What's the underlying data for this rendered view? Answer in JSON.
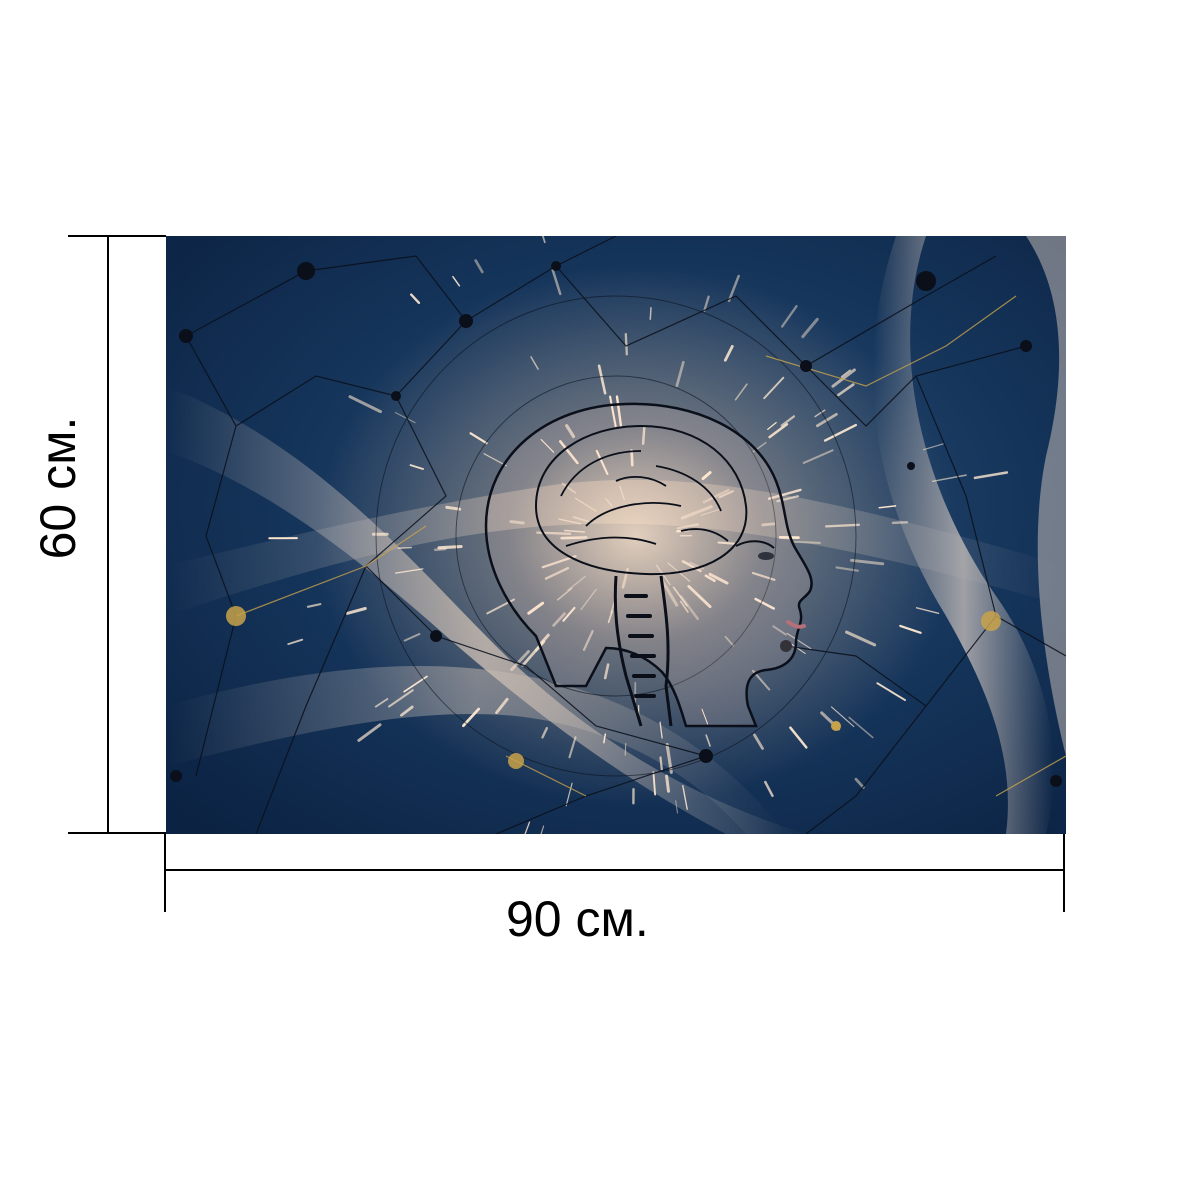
{
  "product": {
    "artwork_name": "head-profile-neural-network-art",
    "colors": {
      "background": "#0f2a4c",
      "glow": "#f7dcc8",
      "network": "#0a0f1a",
      "gold": "#c8a24a"
    }
  },
  "dimensions": {
    "width_label": "90 см.",
    "height_label": "60 см."
  }
}
